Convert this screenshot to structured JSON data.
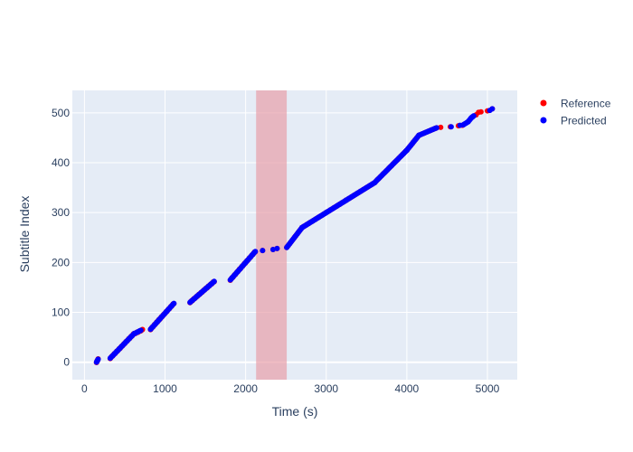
{
  "chart_data": {
    "type": "scatter",
    "xlabel": "Time (s)",
    "ylabel": "Subtitle Index",
    "xlim": [
      -150,
      5370
    ],
    "ylim": [
      -35,
      545
    ],
    "xticks": [
      0,
      1000,
      2000,
      3000,
      4000,
      5000
    ],
    "yticks": [
      0,
      100,
      200,
      300,
      400,
      500
    ],
    "grid": true,
    "legend_position": "top-right",
    "highlight_region": {
      "x_start": 2130,
      "x_end": 2510,
      "color": "#e8a0aa"
    },
    "series": [
      {
        "name": "Reference",
        "color": "#ff0000",
        "segments": [
          [
            150,
            0,
            170,
            6,
            5
          ],
          [
            320,
            8,
            620,
            58,
            30
          ],
          [
            630,
            58,
            720,
            65,
            8
          ],
          [
            820,
            66,
            1110,
            118,
            30
          ],
          [
            1310,
            120,
            1610,
            162,
            30
          ],
          [
            1810,
            165,
            2120,
            222,
            30
          ]
        ],
        "points": [
          [
            2210,
            224
          ],
          [
            2340,
            226
          ],
          [
            2390,
            228
          ],
          [
            4420,
            471
          ],
          [
            4540,
            472
          ],
          [
            4640,
            474
          ],
          [
            4690,
            475
          ],
          [
            4860,
            496
          ],
          [
            4890,
            501
          ],
          [
            4920,
            502
          ],
          [
            5000,
            504
          ],
          [
            5060,
            508
          ]
        ],
        "band": [
          [
            2510,
            230
          ],
          [
            2700,
            270
          ],
          [
            3000,
            300
          ],
          [
            3250,
            325
          ],
          [
            3600,
            360
          ],
          [
            4000,
            425
          ],
          [
            4150,
            455
          ],
          [
            4370,
            470
          ]
        ]
      },
      {
        "name": "Predicted",
        "color": "#0000ff",
        "segments": [
          [
            150,
            0,
            170,
            6,
            5
          ],
          [
            320,
            8,
            620,
            58,
            30
          ],
          [
            630,
            58,
            700,
            64,
            6
          ],
          [
            820,
            66,
            1110,
            118,
            30
          ],
          [
            1310,
            120,
            1610,
            162,
            30
          ],
          [
            1810,
            165,
            2120,
            222,
            30
          ]
        ],
        "points": [
          [
            2210,
            224
          ],
          [
            2340,
            226
          ],
          [
            2390,
            228
          ],
          [
            4550,
            472
          ],
          [
            4660,
            475
          ],
          [
            5030,
            505
          ],
          [
            5060,
            508
          ]
        ],
        "band": [
          [
            2510,
            230
          ],
          [
            2700,
            270
          ],
          [
            3000,
            300
          ],
          [
            3250,
            325
          ],
          [
            3600,
            360
          ],
          [
            4000,
            425
          ],
          [
            4150,
            455
          ],
          [
            4370,
            470
          ]
        ],
        "tail": [
          [
            4700,
            476
          ],
          [
            4760,
            482
          ],
          [
            4800,
            490
          ],
          [
            4830,
            494
          ]
        ]
      }
    ]
  }
}
